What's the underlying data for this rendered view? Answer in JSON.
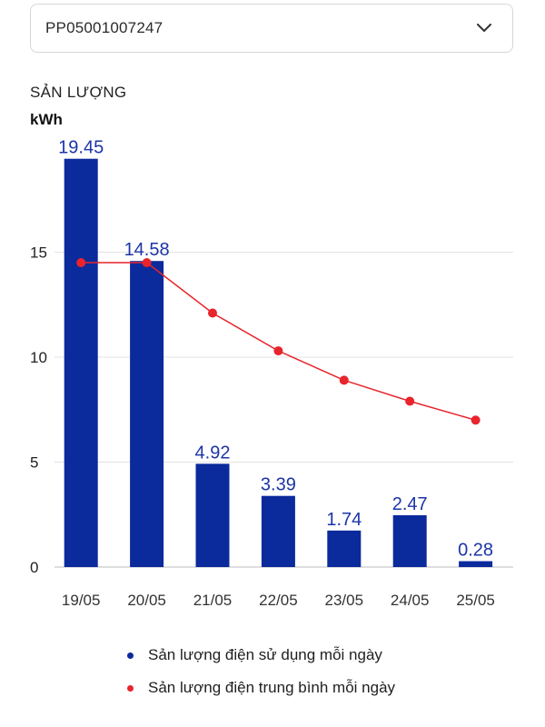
{
  "selector": {
    "value": "PP05001007247",
    "icon": "chevron-down-icon"
  },
  "chart_data": {
    "type": "bar",
    "title": "SẢN LƯỢNG",
    "ylabel": "kWh",
    "categories": [
      "19/05",
      "20/05",
      "21/05",
      "22/05",
      "23/05",
      "24/05",
      "25/05"
    ],
    "y_ticks": [
      0,
      5,
      10,
      15
    ],
    "ylim": [
      0,
      20
    ],
    "grid": true,
    "legend_position": "bottom",
    "series": [
      {
        "name": "Sản lượng điện sử dụng mỗi ngày",
        "type": "bar",
        "color": "#0b2a9c",
        "values": [
          19.45,
          14.58,
          4.92,
          3.39,
          1.74,
          2.47,
          0.28
        ],
        "data_labels": [
          "19.45",
          "14.58",
          "4.92",
          "3.39",
          "1.74",
          "2.47",
          "0.28"
        ]
      },
      {
        "name": "Sản lượng điện trung bình mỗi ngày",
        "type": "line",
        "color": "#e8242c",
        "values": [
          14.5,
          14.5,
          12.1,
          10.3,
          8.9,
          7.9,
          7.0
        ]
      }
    ]
  }
}
